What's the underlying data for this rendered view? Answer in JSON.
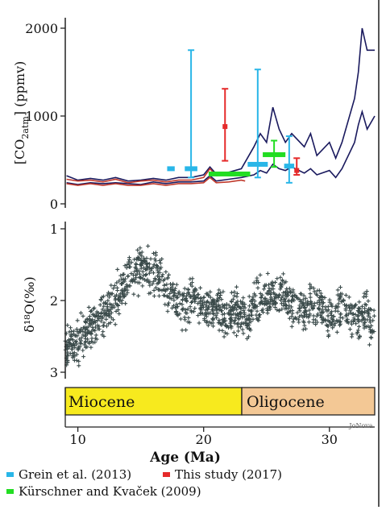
{
  "chart_data": [
    {
      "type": "line",
      "ylabel_main": "[CO",
      "ylabel_sub2": "2",
      "ylabel_subatm": "atm",
      "ylabel_unit": "] (ppmv)",
      "ylim": [
        0,
        2000
      ],
      "yticks": [
        "0",
        "1000",
        "2000"
      ],
      "xlim": [
        9,
        33.6
      ],
      "grid": false,
      "envelope": [
        {
          "name": "",
          "color": "#1a1a5e",
          "x": [
            9.1,
            10,
            11,
            12,
            13,
            14,
            15,
            16,
            17,
            18,
            19,
            20,
            20.5,
            21,
            22,
            23,
            24,
            24.5,
            25,
            25.5,
            26,
            26.5,
            27,
            28,
            28.5,
            29,
            30,
            30.5,
            31,
            32,
            32.3,
            32.6,
            33,
            33.6
          ],
          "y": [
            320,
            270,
            290,
            270,
            300,
            260,
            270,
            290,
            270,
            300,
            300,
            330,
            420,
            340,
            360,
            400,
            650,
            800,
            700,
            1100,
            850,
            700,
            800,
            650,
            800,
            550,
            700,
            520,
            700,
            1200,
            1500,
            2000,
            1750,
            1750
          ]
        },
        {
          "name": "",
          "color": "#1a1a5e",
          "x": [
            9.1,
            10,
            11,
            12,
            13,
            14,
            15,
            16,
            17,
            18,
            19,
            20,
            20.5,
            21,
            22,
            23,
            24,
            24.5,
            25,
            25.5,
            26,
            26.5,
            27,
            28,
            28.5,
            29,
            30,
            30.5,
            31,
            32,
            32.3,
            32.6,
            33,
            33.6
          ],
          "y": [
            240,
            220,
            240,
            230,
            240,
            230,
            220,
            250,
            230,
            250,
            250,
            260,
            320,
            260,
            280,
            300,
            330,
            380,
            350,
            450,
            400,
            380,
            420,
            350,
            400,
            330,
            380,
            300,
            400,
            700,
            900,
            1050,
            850,
            1000
          ]
        },
        {
          "name": "",
          "color": "#c0392b",
          "x": [
            9.1,
            10,
            11,
            12,
            13,
            14,
            15,
            16,
            17,
            18,
            19,
            20,
            20.5,
            21,
            22,
            23,
            23.3
          ],
          "y": [
            280,
            260,
            270,
            250,
            280,
            240,
            260,
            270,
            250,
            270,
            270,
            300,
            400,
            320,
            330,
            350,
            330
          ]
        },
        {
          "name": "",
          "color": "#c0392b",
          "x": [
            9.1,
            10,
            11,
            12,
            13,
            14,
            15,
            16,
            17,
            18,
            19,
            20,
            20.5,
            21,
            22,
            23,
            23.3
          ],
          "y": [
            230,
            210,
            230,
            210,
            230,
            210,
            210,
            230,
            210,
            230,
            230,
            240,
            300,
            240,
            250,
            270,
            260
          ]
        }
      ],
      "points": [
        {
          "series": "Grein et al. (2013)",
          "color": "#29b6e8",
          "x": 17.4,
          "y": 400,
          "lo": null,
          "hi": null,
          "xerr": 0.3
        },
        {
          "series": "Grein et al. (2013)",
          "color": "#29b6e8",
          "x": 19.0,
          "y": 400,
          "lo": 300,
          "hi": 1750,
          "xerr": 0.5
        },
        {
          "series": "Grein et al. (2013)",
          "color": "#29b6e8",
          "x": 24.3,
          "y": 450,
          "lo": 300,
          "hi": 1530,
          "xerr": 0.8
        },
        {
          "series": "Grein et al. (2013)",
          "color": "#29b6e8",
          "x": 26.8,
          "y": 430,
          "lo": 240,
          "hi": 770,
          "xerr": 0.4
        },
        {
          "series": "This study (2017)",
          "color": "#e52a2a",
          "x": 21.7,
          "y": 880,
          "lo": 490,
          "hi": 1310,
          "xerr": 0.12
        },
        {
          "series": "This study (2017)",
          "color": "#e52a2a",
          "x": 27.4,
          "y": 380,
          "lo": 330,
          "hi": 520,
          "xerr": 0.12
        },
        {
          "series": "Kürschner and Kvaček (2009)",
          "color": "#22dd22",
          "x": 21.5,
          "y": 340,
          "lo": null,
          "hi": null,
          "xerr": 1.1
        },
        {
          "series": "Kürschner and Kvaček (2009)",
          "color": "#22dd22",
          "x": 22.8,
          "y": 340,
          "lo": null,
          "hi": null,
          "xerr": 0.9
        },
        {
          "series": "Kürschner and Kvaček (2009)",
          "color": "#22dd22",
          "x": 25.6,
          "y": 560,
          "lo": 420,
          "hi": 720,
          "xerr": 0.9
        }
      ]
    },
    {
      "type": "scatter",
      "ylabel": "δ¹⁸O(‰)",
      "ylim": [
        1,
        3
      ],
      "y_inverted": true,
      "yticks": [
        "1",
        "2",
        "3"
      ],
      "xlim": [
        9,
        33.6
      ],
      "color": "#3a4a4a",
      "trend": {
        "x": [
          9,
          10,
          11,
          12,
          13,
          14,
          15,
          16,
          17,
          17.8,
          18.5,
          19,
          20,
          21,
          22,
          23,
          23.5,
          24,
          25,
          26,
          27,
          28,
          29,
          30,
          31,
          32,
          33,
          33.6
        ],
        "y": [
          2.72,
          2.55,
          2.4,
          2.2,
          2.0,
          1.65,
          1.55,
          1.62,
          1.85,
          2.0,
          2.15,
          2.0,
          2.05,
          2.15,
          2.2,
          2.15,
          2.35,
          2.0,
          2.0,
          1.85,
          2.05,
          2.2,
          2.0,
          2.25,
          2.1,
          2.3,
          2.2,
          2.35
        ]
      },
      "spread": 0.28
    },
    {
      "type": "timeline",
      "xlabel": "Age (Ma)",
      "xlim": [
        9,
        33.6
      ],
      "xticks": [
        10,
        20,
        30
      ],
      "epochs": [
        {
          "label": "Miocene",
          "start": 9,
          "end": 23.03,
          "color": "#f7ea1e"
        },
        {
          "label": "Oligocene",
          "start": 23.03,
          "end": 33.6,
          "color": "#f3c895"
        }
      ],
      "credit": "JoNova"
    }
  ],
  "legend": {
    "grein": {
      "label": "Grein et al. (2013)",
      "color": "#29b6e8"
    },
    "this_study": {
      "label": "This study (2017)",
      "color": "#e52a2a"
    },
    "kurschner": {
      "label": "Kürschner and Kvaček (2009)",
      "color": "#22dd22"
    }
  }
}
